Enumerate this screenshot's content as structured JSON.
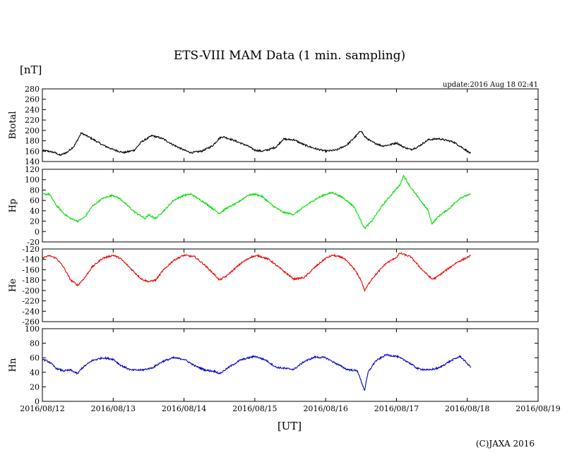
{
  "title": "ETS-VIII MAM Data (1 min. sampling)",
  "unit_label": "[nT]",
  "update_text": "update:2016 Aug 18 02:41",
  "xlabel": "[UT]",
  "copyright": "(C)JAXA 2016",
  "colors": {
    "Btotal": "#000000",
    "Hp": "#00dd00",
    "He": "#ee0000",
    "Hn": "#0000cc"
  },
  "chart_data": {
    "type": "line",
    "x_unit": "days since 2016/08/12 00:00 UT",
    "xlim": [
      0,
      7
    ],
    "x_ticks": [
      {
        "value": 0,
        "label": "2016/08/12"
      },
      {
        "value": 1,
        "label": "2016/08/13"
      },
      {
        "value": 2,
        "label": "2016/08/14"
      },
      {
        "value": 3,
        "label": "2016/08/15"
      },
      {
        "value": 4,
        "label": "2016/08/16"
      },
      {
        "value": 5,
        "label": "2016/08/17"
      },
      {
        "value": 6,
        "label": "2016/08/18"
      },
      {
        "value": 7,
        "label": "2016/08/19"
      }
    ],
    "panels": [
      {
        "name": "Btotal",
        "ylabel": "Btotal",
        "ylim": [
          140,
          280
        ],
        "yticks": [
          140,
          160,
          180,
          200,
          220,
          240,
          260,
          280
        ],
        "x": [
          0.0,
          0.08,
          0.18,
          0.25,
          0.35,
          0.45,
          0.55,
          0.7,
          0.85,
          1.0,
          1.15,
          1.3,
          1.4,
          1.55,
          1.7,
          1.85,
          2.0,
          2.1,
          2.25,
          2.4,
          2.5,
          2.55,
          2.7,
          2.9,
          3.0,
          3.1,
          3.2,
          3.3,
          3.4,
          3.55,
          3.7,
          3.85,
          4.0,
          4.15,
          4.3,
          4.4,
          4.5,
          4.55,
          4.65,
          4.8,
          4.9,
          5.0,
          5.1,
          5.2,
          5.3,
          5.45,
          5.6,
          5.8,
          5.95,
          6.05
        ],
        "values": [
          161,
          160,
          157,
          152,
          158,
          170,
          195,
          184,
          172,
          163,
          157,
          162,
          178,
          190,
          184,
          172,
          162,
          157,
          160,
          170,
          185,
          188,
          181,
          170,
          162,
          160,
          163,
          168,
          183,
          182,
          172,
          165,
          160,
          162,
          172,
          185,
          200,
          188,
          178,
          170,
          172,
          176,
          168,
          163,
          168,
          182,
          184,
          178,
          165,
          155
        ]
      },
      {
        "name": "Hp",
        "ylabel": "Hp",
        "ylim": [
          -20,
          120
        ],
        "yticks": [
          -20,
          0,
          20,
          40,
          60,
          80,
          100,
          120
        ],
        "x": [
          0.0,
          0.1,
          0.2,
          0.3,
          0.4,
          0.5,
          0.6,
          0.7,
          0.85,
          1.0,
          1.1,
          1.3,
          1.45,
          1.5,
          1.6,
          1.75,
          1.85,
          2.0,
          2.1,
          2.3,
          2.45,
          2.5,
          2.6,
          2.75,
          2.9,
          3.0,
          3.1,
          3.25,
          3.4,
          3.55,
          3.7,
          3.85,
          4.0,
          4.1,
          4.25,
          4.4,
          4.5,
          4.55,
          4.65,
          4.8,
          4.95,
          5.05,
          5.1,
          5.2,
          5.35,
          5.45,
          5.5,
          5.6,
          5.75,
          5.9,
          6.05
        ],
        "values": [
          72,
          72,
          50,
          35,
          25,
          20,
          28,
          48,
          64,
          70,
          63,
          38,
          25,
          32,
          25,
          45,
          60,
          70,
          72,
          55,
          40,
          35,
          45,
          55,
          70,
          72,
          68,
          50,
          37,
          33,
          48,
          62,
          72,
          75,
          65,
          48,
          20,
          6,
          20,
          50,
          75,
          90,
          108,
          85,
          58,
          40,
          15,
          30,
          45,
          65,
          72
        ]
      },
      {
        "name": "He",
        "ylabel": "He",
        "ylim": [
          -260,
          -120
        ],
        "yticks": [
          -260,
          -240,
          -220,
          -200,
          -180,
          -160,
          -140,
          -120
        ],
        "x": [
          0.0,
          0.1,
          0.2,
          0.3,
          0.4,
          0.5,
          0.6,
          0.7,
          0.85,
          1.0,
          1.1,
          1.25,
          1.4,
          1.5,
          1.6,
          1.7,
          1.85,
          2.0,
          2.15,
          2.3,
          2.45,
          2.5,
          2.6,
          2.8,
          2.95,
          3.05,
          3.2,
          3.4,
          3.55,
          3.7,
          3.85,
          4.0,
          4.1,
          4.25,
          4.4,
          4.5,
          4.55,
          4.65,
          4.85,
          5.0,
          5.05,
          5.2,
          5.35,
          5.5,
          5.55,
          5.65,
          5.85,
          6.05
        ],
        "values": [
          -137,
          -133,
          -138,
          -155,
          -180,
          -190,
          -175,
          -155,
          -138,
          -132,
          -138,
          -158,
          -178,
          -183,
          -180,
          -162,
          -142,
          -132,
          -135,
          -152,
          -172,
          -180,
          -172,
          -148,
          -135,
          -133,
          -140,
          -162,
          -178,
          -175,
          -155,
          -138,
          -132,
          -137,
          -158,
          -180,
          -200,
          -178,
          -148,
          -136,
          -128,
          -135,
          -158,
          -178,
          -176,
          -166,
          -146,
          -133
        ]
      },
      {
        "name": "Hn",
        "ylabel": "Hn",
        "ylim": [
          0,
          100
        ],
        "yticks": [
          0,
          20,
          40,
          60,
          80,
          100
        ],
        "x": [
          0.0,
          0.1,
          0.2,
          0.3,
          0.4,
          0.5,
          0.55,
          0.7,
          0.85,
          1.0,
          1.1,
          1.25,
          1.4,
          1.55,
          1.7,
          1.85,
          2.0,
          2.15,
          2.3,
          2.45,
          2.5,
          2.65,
          2.8,
          3.0,
          3.15,
          3.3,
          3.45,
          3.55,
          3.7,
          3.85,
          4.0,
          4.15,
          4.3,
          4.45,
          4.5,
          4.55,
          4.6,
          4.7,
          4.85,
          5.0,
          5.15,
          5.3,
          5.45,
          5.6,
          5.75,
          5.9,
          6.05
        ],
        "values": [
          58,
          54,
          45,
          42,
          43,
          38,
          45,
          56,
          60,
          58,
          50,
          43,
          43,
          46,
          55,
          60,
          58,
          49,
          43,
          41,
          38,
          48,
          57,
          62,
          57,
          47,
          45,
          44,
          55,
          61,
          60,
          52,
          44,
          42,
          28,
          15,
          40,
          55,
          64,
          62,
          55,
          45,
          43,
          46,
          55,
          62,
          47
        ]
      }
    ]
  }
}
